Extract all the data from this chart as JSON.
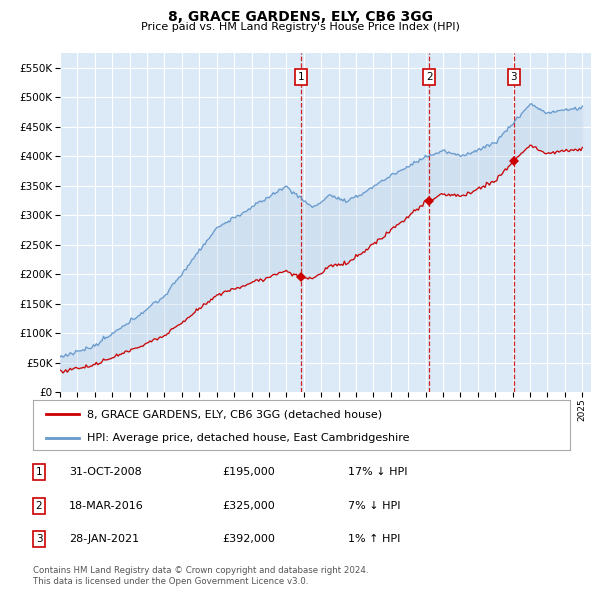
{
  "title": "8, GRACE GARDENS, ELY, CB6 3GG",
  "subtitle": "Price paid vs. HM Land Registry's House Price Index (HPI)",
  "ylim": [
    0,
    575000
  ],
  "yticks": [
    0,
    50000,
    100000,
    150000,
    200000,
    250000,
    300000,
    350000,
    400000,
    450000,
    500000,
    550000
  ],
  "background_color": "#ffffff",
  "plot_bg_color": "#dce9f7",
  "grid_color": "#ffffff",
  "sale_year_vals": [
    2008.833,
    2016.208,
    2021.075
  ],
  "sale_prices": [
    195000,
    325000,
    392000
  ],
  "sale_labels": [
    "1",
    "2",
    "3"
  ],
  "legend_house": "8, GRACE GARDENS, ELY, CB6 3GG (detached house)",
  "legend_hpi": "HPI: Average price, detached house, East Cambridgeshire",
  "table_rows": [
    {
      "num": "1",
      "date": "31-OCT-2008",
      "price": "£195,000",
      "change": "17% ↓ HPI"
    },
    {
      "num": "2",
      "date": "18-MAR-2016",
      "price": "£325,000",
      "change": "7% ↓ HPI"
    },
    {
      "num": "3",
      "date": "28-JAN-2021",
      "price": "£392,000",
      "change": "1% ↑ HPI"
    }
  ],
  "footnote1": "Contains HM Land Registry data © Crown copyright and database right 2024.",
  "footnote2": "This data is licensed under the Open Government Licence v3.0.",
  "house_color": "#cc0000",
  "hpi_color": "#6699cc",
  "vline_color": "#cc0000",
  "marker_box_color": "#cc0000",
  "fill_color": "#b8d0e8"
}
